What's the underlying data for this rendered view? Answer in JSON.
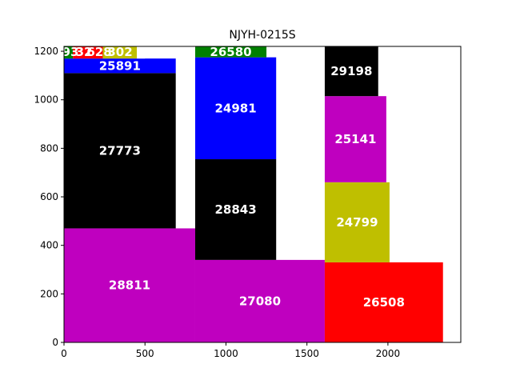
{
  "chart_data": {
    "type": "bar",
    "title": "NJYH-0215S",
    "xlabel": "",
    "ylabel": "",
    "xlim": [
      0,
      2450
    ],
    "ylim": [
      0,
      1220
    ],
    "grid": false,
    "x_ticks": [
      0,
      500,
      1000,
      1500,
      2000
    ],
    "y_ticks": [
      0,
      200,
      400,
      600,
      800,
      1000,
      1200
    ],
    "colors": {
      "magenta": "#bf00bf",
      "black": "#000000",
      "blue": "#0000ff",
      "green": "#008000",
      "red": "#ff0000",
      "olive": "#bfbf00",
      "white": "#ffffff"
    },
    "rects": [
      {
        "label": "28811",
        "x0": 0,
        "x1": 810,
        "y0": 0,
        "y1": 470,
        "color": "#bf00bf"
      },
      {
        "label": "27080",
        "x0": 810,
        "x1": 1610,
        "y0": 0,
        "y1": 340,
        "color": "#bf00bf"
      },
      {
        "label": "26508",
        "x0": 1610,
        "x1": 2340,
        "y0": 0,
        "y1": 330,
        "color": "#ff0000"
      },
      {
        "label": "27773",
        "x0": 0,
        "x1": 690,
        "y0": 470,
        "y1": 1110,
        "color": "#000000"
      },
      {
        "label": "25891",
        "x0": 0,
        "x1": 690,
        "y0": 1110,
        "y1": 1170,
        "color": "#0000ff"
      },
      {
        "label": "28843",
        "x0": 810,
        "x1": 1310,
        "y0": 340,
        "y1": 755,
        "color": "#000000"
      },
      {
        "label": "24981",
        "x0": 810,
        "x1": 1310,
        "y0": 755,
        "y1": 1175,
        "color": "#0000ff"
      },
      {
        "label": "26580",
        "x0": 810,
        "x1": 1250,
        "y0": 1175,
        "y1": 1220,
        "color": "#008000"
      },
      {
        "label": "24799",
        "x0": 1610,
        "x1": 2010,
        "y0": 330,
        "y1": 660,
        "color": "#bfbf00"
      },
      {
        "label": "25141",
        "x0": 1610,
        "x1": 1990,
        "y0": 660,
        "y1": 1015,
        "color": "#bf00bf"
      },
      {
        "label": "29198",
        "x0": 1610,
        "x1": 1940,
        "y0": 1015,
        "y1": 1220,
        "color": "#000000"
      },
      {
        "label": "",
        "x0": 0,
        "x1": 55,
        "y0": 1170,
        "y1": 1220,
        "color": "#008000"
      },
      {
        "label": "",
        "x0": 55,
        "x1": 240,
        "y0": 1170,
        "y1": 1220,
        "color": "#ff0000"
      },
      {
        "label": "",
        "x0": 240,
        "x1": 450,
        "y0": 1170,
        "y1": 1220,
        "color": "#bfbf00"
      },
      {
        "label": "",
        "x0": 450,
        "x1": 500,
        "y0": 1170,
        "y1": 1220,
        "color": "#ffffff"
      }
    ],
    "overlap_labels": [
      "93",
      "32",
      "628",
      "302"
    ]
  }
}
